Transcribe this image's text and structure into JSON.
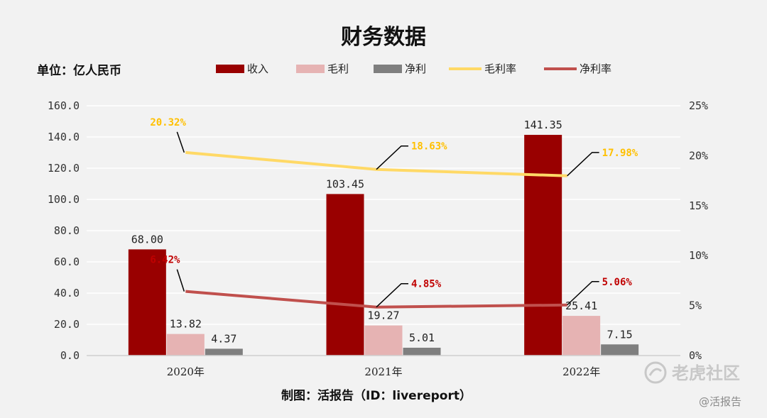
{
  "chart_data": {
    "type": "bar",
    "title": "财务数据",
    "unit_label": "单位：亿人民币",
    "categories": [
      "2020年",
      "2021年",
      "2022年"
    ],
    "series": [
      {
        "name": "收入",
        "kind": "bar",
        "axis": "left",
        "color": "#990000",
        "values": [
          68.0,
          103.45,
          141.35
        ],
        "labels": [
          "68.00",
          "103.45",
          "141.35"
        ]
      },
      {
        "name": "毛利",
        "kind": "bar",
        "axis": "left",
        "color": "#e6b3b3",
        "values": [
          13.82,
          19.27,
          25.41
        ],
        "labels": [
          "13.82",
          "19.27",
          "25.41"
        ]
      },
      {
        "name": "净利",
        "kind": "bar",
        "axis": "left",
        "color": "#7f7f7f",
        "values": [
          4.37,
          5.01,
          7.15
        ],
        "labels": [
          "4.37",
          "5.01",
          "7.15"
        ]
      },
      {
        "name": "毛利率",
        "kind": "line",
        "axis": "right",
        "color": "#ffd966",
        "label_color": "#ffc000",
        "values": [
          20.32,
          18.63,
          17.98
        ],
        "labels": [
          "20.32%",
          "18.63%",
          "17.98%"
        ]
      },
      {
        "name": "净利率",
        "kind": "line",
        "axis": "right",
        "color": "#c0504d",
        "label_color": "#c00000",
        "values": [
          6.42,
          4.85,
          5.06
        ],
        "labels": [
          "6.42%",
          "4.85%",
          "5.06%"
        ]
      }
    ],
    "y_left": {
      "min": 0,
      "max": 160,
      "step": 20,
      "tick_labels": [
        "0.0",
        "20.0",
        "40.0",
        "60.0",
        "80.0",
        "100.0",
        "120.0",
        "140.0",
        "160.0"
      ]
    },
    "y_right": {
      "min": 0,
      "max": 25,
      "step": 5,
      "tick_labels": [
        "0%",
        "5%",
        "10%",
        "15%",
        "20%",
        "25%"
      ]
    },
    "grid": true,
    "legend_position": "top"
  },
  "footer": {
    "credit": "制图：活报告（ID：livereport）"
  },
  "watermark": {
    "brand": "老虎社区",
    "handle": "@活报告"
  }
}
